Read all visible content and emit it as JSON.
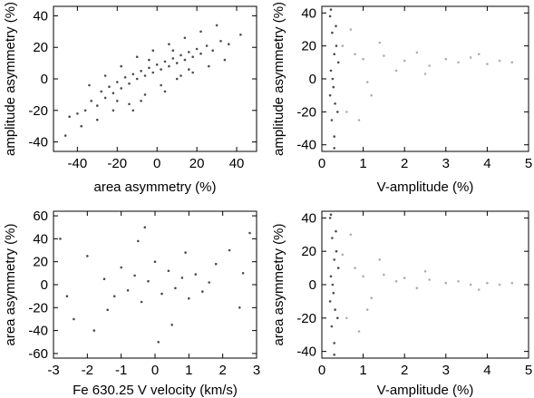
{
  "chart_data": [
    {
      "type": "scatter",
      "id": "tl",
      "xlabel": "area asymmetry (%)",
      "ylabel": "amplitude asymmetry (%)",
      "xlim": [
        -52,
        50
      ],
      "ylim": [
        -46,
        46
      ],
      "xticks": [
        -40,
        -20,
        0,
        20,
        40
      ],
      "yticks": [
        -40,
        -20,
        0,
        20,
        40
      ],
      "xtick_labels": [
        "-40",
        "-20",
        "0",
        "20",
        "40"
      ],
      "ytick_labels": [
        "-40",
        "-20",
        "0",
        "20",
        "40"
      ],
      "point_color": "#000000",
      "series": [
        {
          "values": [
            [
              -44,
              -24
            ],
            [
              -40,
              -22
            ],
            [
              -36,
              -20
            ],
            [
              -33,
              -14
            ],
            [
              -30,
              -17
            ],
            [
              -28,
              -8
            ],
            [
              -26,
              -12
            ],
            [
              -24,
              -5
            ],
            [
              -22,
              -9
            ],
            [
              -20,
              -2
            ],
            [
              -18,
              -6
            ],
            [
              -16,
              1
            ],
            [
              -14,
              -3
            ],
            [
              -12,
              3
            ],
            [
              -10,
              0
            ],
            [
              -8,
              5
            ],
            [
              -6,
              2
            ],
            [
              -4,
              7
            ],
            [
              -2,
              4
            ],
            [
              0,
              9
            ],
            [
              2,
              6
            ],
            [
              4,
              11
            ],
            [
              6,
              8
            ],
            [
              8,
              13
            ],
            [
              10,
              10
            ],
            [
              12,
              15
            ],
            [
              14,
              12
            ],
            [
              16,
              17
            ],
            [
              18,
              14
            ],
            [
              20,
              19
            ],
            [
              22,
              16
            ],
            [
              25,
              21
            ],
            [
              28,
              18
            ],
            [
              32,
              24
            ],
            [
              36,
              22
            ],
            [
              42,
              28
            ],
            [
              -38,
              -30
            ],
            [
              -30,
              -26
            ],
            [
              -22,
              -20
            ],
            [
              -14,
              -16
            ],
            [
              -6,
              -10
            ],
            [
              2,
              -4
            ],
            [
              10,
              0
            ],
            [
              18,
              4
            ],
            [
              26,
              8
            ],
            [
              34,
              12
            ],
            [
              -34,
              -4
            ],
            [
              -26,
              2
            ],
            [
              -18,
              8
            ],
            [
              -10,
              14
            ],
            [
              -2,
              18
            ],
            [
              6,
              22
            ],
            [
              14,
              26
            ],
            [
              22,
              30
            ],
            [
              -46,
              -36
            ],
            [
              30,
              34
            ],
            [
              -12,
              -20
            ],
            [
              -20,
              -14
            ],
            [
              4,
              -8
            ],
            [
              12,
              2
            ],
            [
              -4,
              12
            ],
            [
              8,
              18
            ],
            [
              16,
              6
            ],
            [
              -8,
              -14
            ]
          ]
        }
      ]
    },
    {
      "type": "scatter",
      "id": "tr",
      "xlabel": "V-amplitude (%)",
      "ylabel": "amplitude asymmetry (%)",
      "xlim": [
        0,
        5
      ],
      "ylim": [
        -44,
        44
      ],
      "xticks": [
        0,
        1,
        2,
        3,
        4,
        5
      ],
      "yticks": [
        -40,
        -20,
        0,
        20,
        40
      ],
      "xtick_labels": [
        "0",
        "1",
        "2",
        "3",
        "4",
        "5"
      ],
      "ytick_labels": [
        "-40",
        "-20",
        "0",
        "20",
        "40"
      ],
      "series": [
        {
          "color": "#000000",
          "values": [
            [
              0.2,
              38
            ],
            [
              0.25,
              28
            ],
            [
              0.3,
              15
            ],
            [
              0.22,
              5
            ],
            [
              0.28,
              -5
            ],
            [
              0.32,
              -15
            ],
            [
              0.24,
              -25
            ],
            [
              0.3,
              -35
            ],
            [
              0.35,
              20
            ],
            [
              0.2,
              -10
            ],
            [
              0.4,
              10
            ],
            [
              0.26,
              0
            ],
            [
              0.3,
              -42
            ],
            [
              0.22,
              42
            ],
            [
              0.38,
              -20
            ],
            [
              0.34,
              32
            ]
          ]
        },
        {
          "color": "#8c8c8c",
          "values": [
            [
              0.5,
              20
            ],
            [
              0.6,
              -20
            ],
            [
              0.8,
              15
            ],
            [
              1.0,
              12
            ],
            [
              1.2,
              -10
            ],
            [
              1.5,
              14
            ],
            [
              1.8,
              5
            ],
            [
              2.0,
              11
            ],
            [
              2.3,
              16
            ],
            [
              2.6,
              8
            ],
            [
              3.0,
              12
            ],
            [
              3.3,
              10
            ],
            [
              3.6,
              13
            ],
            [
              4.0,
              9
            ],
            [
              4.3,
              11
            ],
            [
              4.6,
              10
            ],
            [
              0.7,
              30
            ],
            [
              0.9,
              -25
            ],
            [
              1.4,
              22
            ],
            [
              1.1,
              -2
            ],
            [
              2.5,
              3
            ],
            [
              3.8,
              15
            ]
          ]
        }
      ]
    },
    {
      "type": "scatter",
      "id": "bl",
      "xlabel": "Fe 630.25 V velocity (km/s)",
      "ylabel": "area asymmetry (%)",
      "xlim": [
        -3,
        3
      ],
      "ylim": [
        -64,
        64
      ],
      "xticks": [
        -3,
        -2,
        -1,
        0,
        1,
        2,
        3
      ],
      "yticks": [
        -60,
        -40,
        -20,
        0,
        20,
        40,
        60
      ],
      "xtick_labels": [
        "-3",
        "-2",
        "-1",
        "0",
        "1",
        "2",
        "3"
      ],
      "ytick_labels": [
        "-60",
        "-40",
        "-20",
        "0",
        "20",
        "40",
        "60"
      ],
      "point_color": "#000000",
      "series": [
        {
          "values": [
            [
              -1.5,
              5
            ],
            [
              -1.2,
              -10
            ],
            [
              -1.0,
              15
            ],
            [
              -0.8,
              -5
            ],
            [
              -0.6,
              8
            ],
            [
              -0.4,
              -15
            ],
            [
              -0.2,
              3
            ],
            [
              0.0,
              20
            ],
            [
              0.2,
              -8
            ],
            [
              0.4,
              12
            ],
            [
              0.6,
              -3
            ],
            [
              0.8,
              6
            ],
            [
              1.0,
              -12
            ],
            [
              1.2,
              9
            ],
            [
              1.4,
              -6
            ],
            [
              1.6,
              2
            ],
            [
              -2.0,
              25
            ],
            [
              -2.4,
              -30
            ],
            [
              -1.8,
              -40
            ],
            [
              2.2,
              30
            ],
            [
              2.5,
              -20
            ],
            [
              -2.8,
              40
            ],
            [
              2.8,
              45
            ],
            [
              -0.5,
              38
            ],
            [
              0.5,
              -35
            ],
            [
              1.8,
              18
            ],
            [
              -1.4,
              -22
            ],
            [
              0.1,
              -50
            ],
            [
              -0.3,
              50
            ],
            [
              0.9,
              28
            ],
            [
              -2.6,
              -10
            ],
            [
              2.6,
              10
            ]
          ]
        }
      ]
    },
    {
      "type": "scatter",
      "id": "br",
      "xlabel": "V-amplitude (%)",
      "ylabel": "area asymmetry (%)",
      "xlim": [
        0,
        5
      ],
      "ylim": [
        -44,
        44
      ],
      "xticks": [
        0,
        1,
        2,
        3,
        4,
        5
      ],
      "yticks": [
        -40,
        -20,
        0,
        20,
        40
      ],
      "xtick_labels": [
        "0",
        "1",
        "2",
        "3",
        "4",
        "5"
      ],
      "ytick_labels": [
        "-40",
        "-20",
        "0",
        "20",
        "40"
      ],
      "series": [
        {
          "color": "#000000",
          "values": [
            [
              0.2,
              40
            ],
            [
              0.25,
              28
            ],
            [
              0.3,
              15
            ],
            [
              0.22,
              5
            ],
            [
              0.28,
              -5
            ],
            [
              0.32,
              -15
            ],
            [
              0.24,
              -25
            ],
            [
              0.3,
              -35
            ],
            [
              0.35,
              20
            ],
            [
              0.2,
              -10
            ],
            [
              0.4,
              10
            ],
            [
              0.26,
              0
            ],
            [
              0.3,
              -42
            ],
            [
              0.22,
              42
            ],
            [
              0.38,
              -20
            ],
            [
              0.34,
              32
            ]
          ]
        },
        {
          "color": "#8c8c8c",
          "values": [
            [
              0.5,
              18
            ],
            [
              0.6,
              -20
            ],
            [
              0.8,
              10
            ],
            [
              1.0,
              5
            ],
            [
              1.2,
              -8
            ],
            [
              1.5,
              6
            ],
            [
              1.8,
              2
            ],
            [
              2.0,
              4
            ],
            [
              2.3,
              -2
            ],
            [
              2.6,
              3
            ],
            [
              3.0,
              1
            ],
            [
              3.3,
              2
            ],
            [
              3.6,
              0
            ],
            [
              4.0,
              1
            ],
            [
              4.3,
              0
            ],
            [
              4.6,
              1
            ],
            [
              0.7,
              30
            ],
            [
              0.9,
              -28
            ],
            [
              1.4,
              15
            ],
            [
              1.1,
              -15
            ],
            [
              2.5,
              8
            ],
            [
              3.8,
              -3
            ]
          ]
        }
      ]
    }
  ]
}
